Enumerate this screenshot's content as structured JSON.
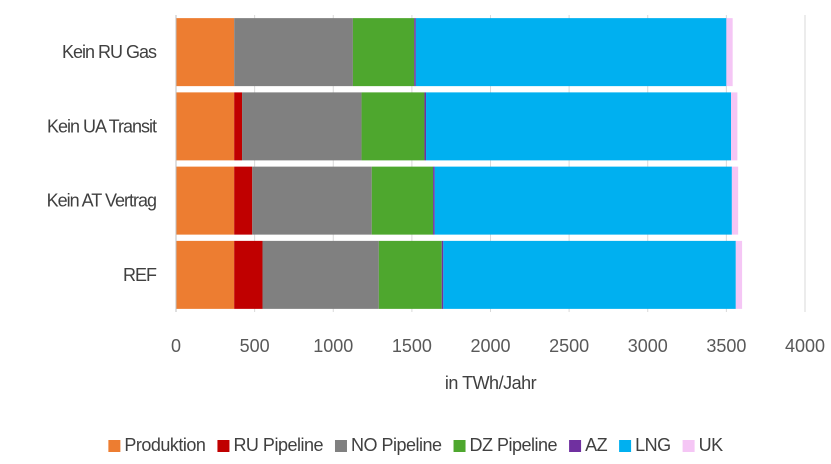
{
  "chart_data": {
    "type": "bar",
    "orientation": "horizontal",
    "stacked": true,
    "categories": [
      "Kein RU Gas",
      "Kein UA Transit",
      "Kein AT Vertrag",
      "REF"
    ],
    "series": [
      {
        "name": "Produktion",
        "color": "#ED7D31",
        "values": [
          370,
          370,
          370,
          370
        ]
      },
      {
        "name": "RU Pipeline",
        "color": "#C00000",
        "values": [
          0,
          50,
          115,
          180
        ]
      },
      {
        "name": "NO Pipeline",
        "color": "#808080",
        "values": [
          755,
          760,
          760,
          740
        ]
      },
      {
        "name": "DZ Pipeline",
        "color": "#4EA72E",
        "values": [
          390,
          400,
          390,
          400
        ]
      },
      {
        "name": "AZ",
        "color": "#7030A0",
        "values": [
          10,
          10,
          10,
          10
        ]
      },
      {
        "name": "LNG",
        "color": "#00B0F0",
        "values": [
          1975,
          1940,
          1890,
          1860
        ]
      },
      {
        "name": "UK",
        "color": "#F5C6F5",
        "values": [
          40,
          40,
          40,
          40
        ]
      }
    ],
    "xlim": [
      0,
      4000
    ],
    "xticks": [
      "0",
      "500",
      "1000",
      "1500",
      "2000",
      "2500",
      "3000",
      "3500",
      "4000"
    ],
    "xlabel": "in TWh/Jahr",
    "ylabel": "",
    "title": "",
    "grid": true,
    "legend_position": "bottom"
  }
}
